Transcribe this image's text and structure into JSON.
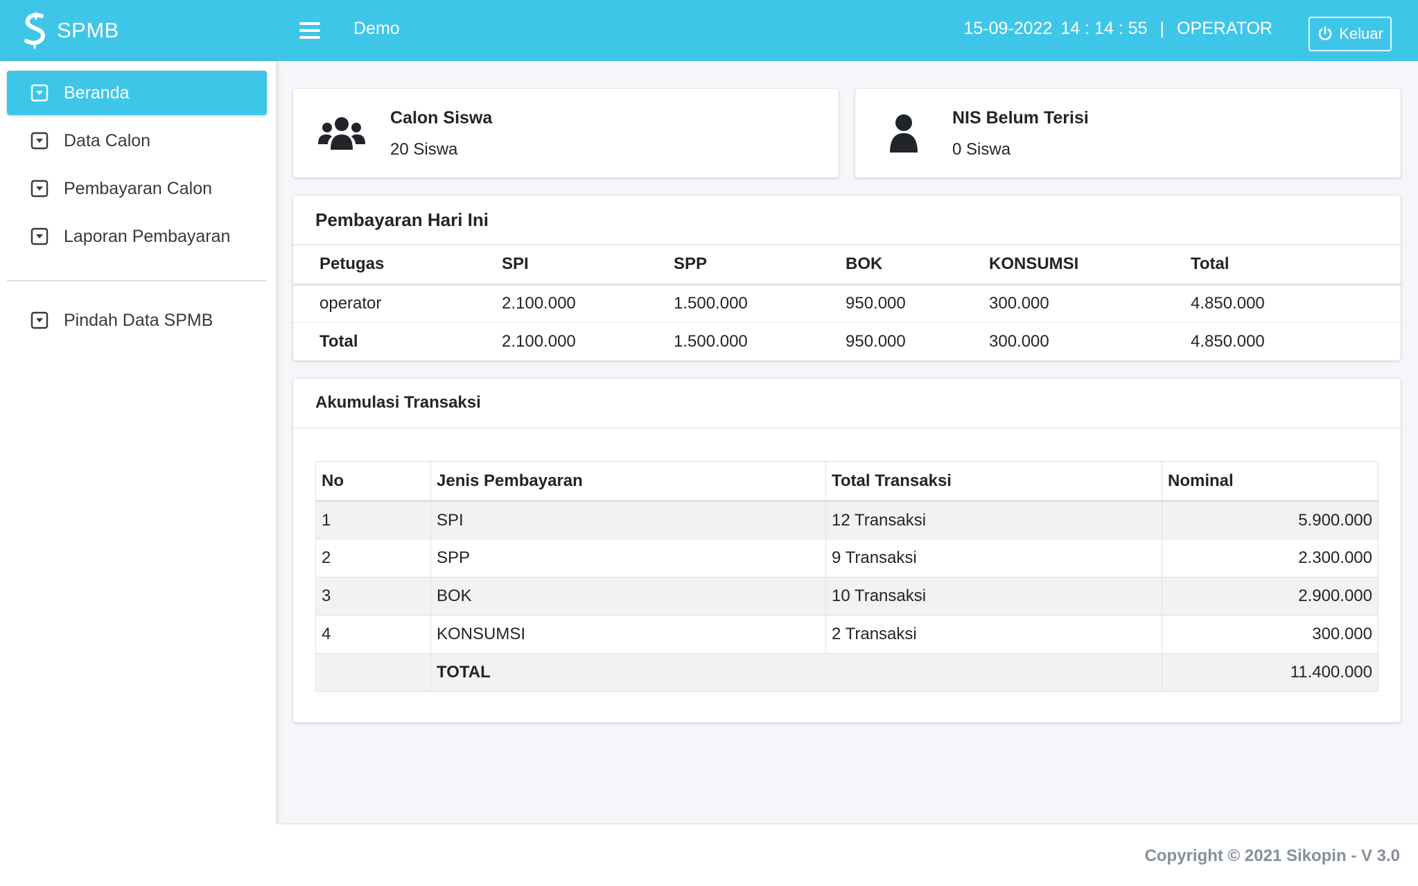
{
  "app": {
    "name": "SPMB",
    "breadcrumb": "Demo"
  },
  "header": {
    "date": "15-09-2022",
    "time": "14 : 14 : 55",
    "separator": "|",
    "role": "OPERATOR",
    "logout_label": "Keluar"
  },
  "sidebar": {
    "items": [
      {
        "label": "Beranda"
      },
      {
        "label": "Data Calon"
      },
      {
        "label": "Pembayaran Calon"
      },
      {
        "label": "Laporan Pembayaran"
      },
      {
        "label": "Pindah Data SPMB"
      }
    ]
  },
  "info_boxes": [
    {
      "title": "Calon Siswa",
      "value": "20 Siswa",
      "icon": "users-icon"
    },
    {
      "title": "NIS Belum Terisi",
      "value": "0 Siswa",
      "icon": "user-icon"
    }
  ],
  "today_payments": {
    "title": "Pembayaran Hari Ini",
    "headers": [
      "Petugas",
      "SPI",
      "SPP",
      "BOK",
      "KONSUMSI",
      "Total"
    ],
    "rows": [
      [
        "operator",
        "2.100.000",
        "1.500.000",
        "950.000",
        "300.000",
        "4.850.000"
      ],
      [
        "Total",
        "2.100.000",
        "1.500.000",
        "950.000",
        "300.000",
        "4.850.000"
      ]
    ]
  },
  "transactions": {
    "title": "Akumulasi Transaksi",
    "headers": [
      "No",
      "Jenis Pembayaran",
      "Total Transaksi",
      "Nominal"
    ],
    "rows": [
      [
        "1",
        "SPI",
        "12 Transaksi",
        "5.900.000"
      ],
      [
        "2",
        "SPP",
        "9 Transaksi",
        "2.300.000"
      ],
      [
        "3",
        "BOK",
        "10 Transaksi",
        "2.900.000"
      ],
      [
        "4",
        "KONSUMSI",
        "2 Transaksi",
        "300.000"
      ]
    ],
    "total_label": "TOTAL",
    "total_value": "11.400.000"
  },
  "footer": {
    "copyright": "Copyright © 2021 Sikopin - V 3.0"
  },
  "colors": {
    "accent": "#3ec6e8"
  }
}
